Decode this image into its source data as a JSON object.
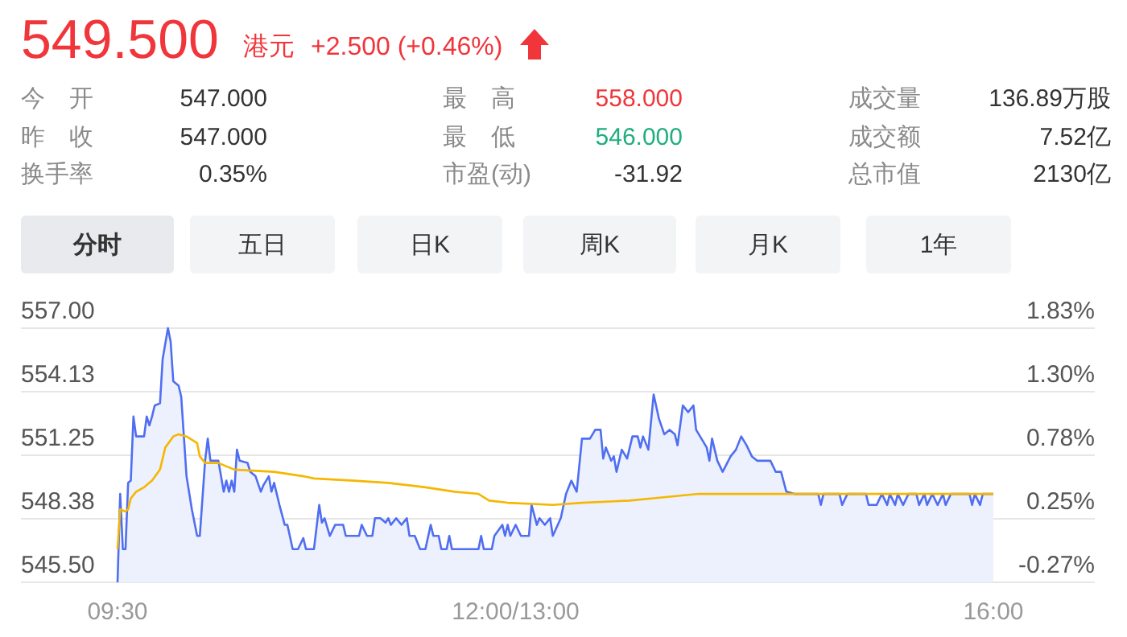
{
  "chart_data": {
    "type": "line",
    "annotations": [
      "549.500",
      "港元",
      "+2.500 (+0.46%)",
      "今 开",
      "547.000",
      "最 高",
      "558.000",
      "成交量",
      "136.89万股",
      "昨 收",
      "547.000",
      "最 低",
      "546.000",
      "成交额",
      "7.52亿",
      "换手率",
      "0.35%",
      "市盈(动)",
      "-31.92",
      "总市值",
      "2130亿",
      "分时",
      "五日",
      "日K",
      "周K",
      "月K",
      "1年"
    ],
    "categories": [
      "09:30",
      null,
      null,
      null,
      null,
      null,
      null,
      null,
      null,
      null,
      null,
      null,
      null,
      null,
      null,
      null,
      null,
      null,
      null,
      null,
      null,
      null,
      null,
      null,
      null,
      null,
      null,
      null,
      null,
      null,
      null,
      null,
      null,
      null,
      null,
      null,
      null,
      null,
      null,
      null,
      null,
      null,
      null,
      null,
      null,
      null,
      null,
      null,
      null,
      null,
      null,
      null,
      null,
      null,
      null,
      null,
      null,
      null,
      null,
      null,
      null,
      null,
      null,
      null,
      null,
      null,
      null,
      null,
      null,
      null,
      null,
      null,
      null,
      null,
      null,
      null,
      null,
      null,
      null,
      null,
      null,
      null,
      null,
      null,
      null,
      null,
      null,
      null,
      null,
      null,
      null,
      null,
      null,
      null,
      null,
      null,
      null,
      null,
      null,
      null,
      null,
      null,
      null,
      null,
      null,
      null,
      null,
      null,
      null,
      null,
      null,
      null,
      null,
      null,
      null,
      null,
      null,
      null,
      null,
      null,
      null,
      null,
      null,
      null,
      null,
      null,
      null,
      null,
      null,
      null,
      null,
      null,
      null,
      null,
      null,
      null,
      null,
      null,
      null,
      null,
      null,
      null,
      null,
      null,
      null,
      null,
      null,
      null,
      null,
      null,
      "12:00/13:00",
      null,
      null,
      null,
      null,
      null,
      null,
      null,
      null,
      null,
      null,
      null,
      null,
      null,
      null,
      null,
      null,
      null,
      null,
      null,
      null,
      null,
      null,
      null,
      null,
      null,
      null,
      null,
      null,
      null,
      null,
      null,
      null,
      null,
      null,
      null,
      null,
      null,
      null,
      null,
      null,
      null,
      null,
      null,
      null,
      null,
      null,
      null,
      null,
      null,
      null,
      null,
      null,
      null,
      null,
      null,
      null,
      null,
      null,
      null,
      null,
      null,
      null,
      null,
      null,
      null,
      null,
      null,
      null,
      null,
      null,
      null,
      null,
      null,
      null,
      null,
      null,
      null,
      null,
      null,
      null,
      null,
      null,
      null,
      null,
      null,
      null,
      null,
      null,
      null,
      null,
      null,
      null,
      null,
      null,
      null,
      null,
      null,
      null,
      null,
      null,
      null,
      null,
      null,
      null,
      null,
      null,
      null,
      null,
      null,
      null,
      null,
      null,
      null,
      null,
      null,
      null,
      null,
      null,
      null,
      null,
      null,
      null,
      null,
      null,
      null,
      null,
      null,
      null,
      null,
      null,
      null,
      null,
      null,
      null,
      null,
      null,
      null,
      null,
      null,
      null,
      null,
      null,
      null,
      null,
      null,
      null,
      null,
      null,
      null,
      null,
      null,
      null,
      null,
      null,
      null,
      null,
      null,
      null,
      null,
      null,
      null,
      null,
      null,
      null,
      null,
      null,
      null,
      null,
      null,
      null,
      null,
      null,
      null,
      null,
      null,
      null,
      null,
      null,
      null,
      "16:00"
    ],
    "ylim": [
      545.5,
      557.0
    ],
    "yticks": [
      {
        "value": 545.5,
        "label": "545.50"
      },
      {
        "value": 548.375,
        "label": "548.38"
      },
      {
        "value": 551.25,
        "label": "551.25"
      },
      {
        "value": 554.125,
        "label": "554.13"
      },
      {
        "value": 557.0,
        "label": "557.00"
      }
    ],
    "y2lim": [
      -0.274,
      1.828
    ],
    "y2ticks": [
      {
        "value": -0.274,
        "label": "-0.27%"
      },
      {
        "value": 0.252,
        "label": "0.25%"
      },
      {
        "value": 0.777,
        "label": "0.78%"
      },
      {
        "value": 1.303,
        "label": "1.30%"
      },
      {
        "value": 1.828,
        "label": "1.83%"
      }
    ],
    "grid": "y",
    "series": [
      {
        "type": "area",
        "color": "#4f6ef2",
        "values": [
          545.5,
          549.5,
          547.0,
          547.0,
          550.0,
          550.1,
          553.0,
          552.1,
          null,
          null,
          552.1,
          553.0,
          552.6,
          553.0,
          553.5,
          null,
          553.6,
          555.6,
          null,
          557.0,
          556.4,
          554.6,
          null,
          554.4,
          553.9,
          null,
          550.3,
          null,
          548.8,
          null,
          547.6,
          547.6,
          null,
          551.0,
          552.0,
          551.0,
          null,
          null,
          551.0,
          null,
          549.6,
          550.1,
          549.6,
          550.1,
          549.6,
          551.5,
          551.0,
          null,
          null,
          550.9,
          550.5,
          null,
          550.3,
          null,
          549.6,
          549.9,
          null,
          550.3,
          549.6,
          550.0,
          null,
          549.0,
          null,
          548.1,
          548.1,
          null,
          547.0,
          null,
          547.0,
          null,
          547.5,
          547.0,
          null,
          null,
          547.0,
          null,
          549.0,
          548.2,
          548.4,
          null,
          547.6,
          null,
          548.1,
          null,
          null,
          548.1,
          547.6,
          null,
          null,
          null,
          null,
          547.6,
          548.1,
          null,
          547.6,
          null,
          547.6,
          548.4,
          null,
          548.4,
          null,
          548.2,
          548.4,
          548.1,
          null,
          548.4,
          null,
          548.1,
          null,
          548.4,
          547.6,
          null,
          547.6,
          null,
          547.0,
          null,
          547.0,
          null,
          548.1,
          547.6,
          null,
          547.6,
          547.0,
          null,
          547.0,
          547.6,
          547.0,
          null,
          null,
          null,
          null,
          null,
          null,
          null,
          null,
          null,
          547.0,
          547.6,
          547.0,
          null,
          null,
          547.0,
          547.6,
          null,
          null,
          548.1,
          547.6,
          548.1,
          547.6,
          null,
          548.1,
          null,
          547.6,
          null,
          null,
          547.6,
          549.0,
          null,
          548.1,
          548.4,
          null,
          548.1,
          null,
          548.4,
          547.6,
          null,
          null,
          548.4,
          null,
          549.5,
          null,
          550.1,
          null,
          549.6,
          null,
          552.0,
          null,
          null,
          552.0,
          null,
          552.4,
          null,
          552.4,
          551.1,
          551.6,
          null,
          551.0,
          551.2,
          550.5,
          null,
          551.5,
          null,
          551.1,
          null,
          552.1,
          null,
          552.1,
          551.6,
          552.1,
          null,
          551.5,
          null,
          554.0,
          null,
          552.9,
          null,
          552.2,
          null,
          552.4,
          null,
          552.2,
          551.7,
          null,
          553.5,
          null,
          553.2,
          null,
          553.5,
          552.4,
          null,
          null,
          null,
          551.6,
          551.0,
          552.0,
          null,
          551.0,
          null,
          550.5,
          null,
          null,
          551.2,
          null,
          551.5,
          null,
          552.1,
          null,
          551.7,
          null,
          551.2,
          null,
          551.0,
          null,
          null,
          null,
          null,
          551.0,
          null,
          550.5,
          null,
          550.5,
          null,
          549.6,
          null,
          null,
          549.5,
          null,
          null,
          null,
          null,
          null,
          null,
          null,
          null,
          549.5,
          549.0,
          549.5,
          null,
          null,
          null,
          null,
          null,
          549.5,
          549.0,
          null,
          549.5,
          null,
          null,
          null,
          null,
          null,
          null,
          549.5,
          549.0,
          null,
          null,
          549.0,
          null,
          549.5,
          null,
          549.0,
          549.5,
          null,
          549.0,
          549.5,
          null,
          549.0,
          null,
          549.5,
          null,
          null,
          549.5,
          549.0,
          null,
          549.5,
          549.0,
          null,
          549.5,
          null,
          549.0,
          null,
          549.5,
          549.0,
          null,
          549.5,
          null,
          null,
          null,
          null,
          null,
          null,
          549.5,
          549.0,
          549.5,
          null,
          549.0,
          549.5,
          null,
          null,
          null,
          549.5
        ]
      },
      {
        "type": "line",
        "color": "#f5b700",
        "values": [
          547.0,
          548.8,
          null,
          548.7,
          548.8,
          549.3,
          null,
          549.6,
          null,
          null,
          549.8,
          null,
          null,
          550.1,
          null,
          null,
          550.6,
          null,
          551.6,
          null,
          null,
          552.1,
          null,
          552.2,
          null,
          null,
          552.1,
          null,
          null,
          null,
          551.8,
          551.2,
          null,
          550.9,
          null,
          null,
          null,
          null,
          550.9,
          null,
          null,
          null,
          null,
          null,
          550.6,
          null,
          null,
          null,
          null,
          null,
          null,
          null,
          null,
          null,
          null,
          null,
          null,
          null,
          null,
          550.5,
          null,
          null,
          null,
          null,
          null,
          null,
          null,
          null,
          null,
          null,
          550.3,
          null,
          null,
          null,
          550.2,
          null,
          null,
          null,
          null,
          null,
          null,
          null,
          null,
          null,
          null,
          null,
          null,
          null,
          null,
          550.1,
          null,
          null,
          null,
          null,
          null,
          null,
          null,
          null,
          null,
          null,
          null,
          null,
          550.0,
          null,
          null,
          null,
          null,
          null,
          null,
          549.9,
          null,
          null,
          null,
          null,
          null,
          null,
          549.8,
          null,
          null,
          null,
          null,
          null,
          null,
          null,
          null,
          null,
          null,
          549.6,
          null,
          null,
          null,
          null,
          null,
          null,
          null,
          null,
          549.5,
          null,
          null,
          null,
          549.2,
          null,
          null,
          null,
          null,
          null,
          null,
          549.1,
          null,
          null,
          null,
          null,
          null,
          null,
          null,
          null,
          null,
          null,
          null,
          null,
          null,
          null,
          null,
          null,
          549.0,
          null,
          null,
          null,
          null,
          null,
          null,
          null,
          null,
          null,
          null,
          549.1,
          null,
          null,
          null,
          null,
          null,
          null,
          null,
          null,
          null,
          null,
          null,
          null,
          null,
          null,
          null,
          null,
          null,
          549.2,
          null,
          null,
          null,
          null,
          null,
          null,
          null,
          null,
          549.3,
          null,
          null,
          null,
          null,
          null,
          null,
          null,
          null,
          null,
          null,
          null,
          null,
          null,
          null,
          null,
          null,
          549.5,
          null,
          null,
          null,
          null,
          null,
          null,
          549.5,
          null,
          null,
          null,
          null,
          null,
          null,
          null,
          null,
          null,
          null,
          null,
          null,
          null,
          null,
          null,
          null,
          null,
          null,
          null,
          null,
          null,
          null,
          null,
          null,
          null,
          null,
          null,
          null,
          null,
          null,
          549.5,
          null,
          null,
          null,
          null,
          null,
          null,
          null,
          null,
          null,
          null,
          null,
          null,
          null,
          null,
          null,
          null,
          null,
          null,
          null,
          null,
          null,
          null,
          null,
          null,
          null,
          null,
          null,
          null,
          null,
          null,
          null,
          null,
          null,
          null,
          null,
          null,
          null,
          null,
          null,
          null,
          null,
          null,
          null,
          null,
          null,
          null,
          null,
          null,
          null,
          null,
          null,
          null,
          null,
          null,
          null,
          null,
          null,
          null,
          null,
          null,
          null,
          null,
          null,
          null,
          null,
          null,
          null,
          null,
          null,
          null,
          null,
          null,
          549.5
        ]
      }
    ]
  }
}
